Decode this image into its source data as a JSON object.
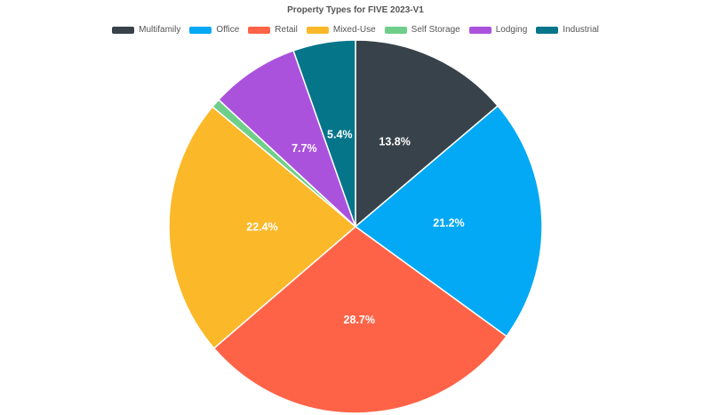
{
  "chart_data": {
    "type": "pie",
    "title": "Property Types for FIVE 2023-V1",
    "legend_position": "top",
    "series": [
      {
        "name": "Multifamily",
        "value": 13.8,
        "label": "13.8%",
        "color": "#37424a"
      },
      {
        "name": "Office",
        "value": 21.2,
        "label": "21.2%",
        "color": "#03a9f4"
      },
      {
        "name": "Retail",
        "value": 28.7,
        "label": "28.7%",
        "color": "#ff6347"
      },
      {
        "name": "Mixed-Use",
        "value": 22.4,
        "label": "22.4%",
        "color": "#fbb829"
      },
      {
        "name": "Self Storage",
        "value": 0.8,
        "label": "",
        "color": "#6fcf8a"
      },
      {
        "name": "Lodging",
        "value": 7.7,
        "label": "7.7%",
        "color": "#ab52dd"
      },
      {
        "name": "Industrial",
        "value": 5.4,
        "label": "5.4%",
        "color": "#05758a"
      }
    ]
  }
}
